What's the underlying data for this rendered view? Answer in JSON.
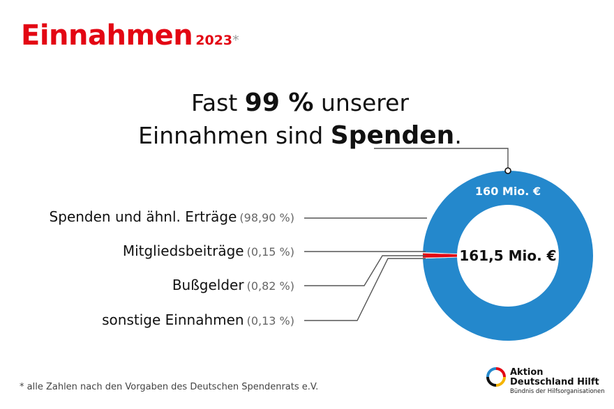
{
  "title": {
    "main": "Einnahmen",
    "year": "2023",
    "asterisk": "*"
  },
  "headline": {
    "line1_a": "Fast",
    "line1_b": "99 %",
    "line1_c": "unserer",
    "line2_a": "Einnahmen sind",
    "line2_b": "Spenden",
    "line2_c": "."
  },
  "colors": {
    "accent_red": "#e30613",
    "donut_blue": "#2488cc",
    "line_gray": "#555555"
  },
  "chart_data": {
    "type": "pie",
    "variant": "donut",
    "total_label": "161,5 Mio. €",
    "top_label": "160 Mio. €",
    "slices": [
      {
        "name": "Spenden und ähnl. Erträge",
        "pct_label": "(98,90 %)",
        "value": 98.9,
        "color": "#2488cc"
      },
      {
        "name": "Mitgliedsbeiträge",
        "pct_label": "(0,15 %)",
        "value": 0.15,
        "color": "#e8e8e8"
      },
      {
        "name": "Bußgelder",
        "pct_label": "(0,82 %)",
        "value": 0.82,
        "color": "#e30613"
      },
      {
        "name": "sonstige Einnahmen",
        "pct_label": "(0,13 %)",
        "value": 0.13,
        "color": "#f2f2f2"
      }
    ]
  },
  "footnote": "* alle Zahlen nach den Vorgaben des Deutschen Spendenrats e.V.",
  "logo": {
    "line1": "Aktion",
    "line2": "Deutschland Hilft",
    "line3": "Bündnis der Hilfsorganisationen"
  }
}
